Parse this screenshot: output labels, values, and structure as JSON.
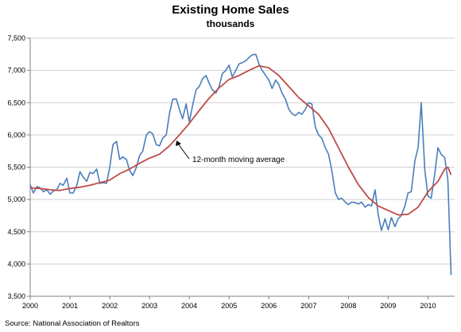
{
  "chart_data": {
    "type": "line",
    "title": "Existing Home Sales",
    "subtitle": "thousands",
    "xlabel": "",
    "ylabel": "",
    "xlim": [
      2000,
      2010.67
    ],
    "ylim": [
      3500,
      7500
    ],
    "x_ticks": [
      "2000",
      "2001",
      "2002",
      "2003",
      "2004",
      "2005",
      "2006",
      "2007",
      "2008",
      "2009",
      "2010"
    ],
    "y_ticks": [
      "3,500",
      "4,000",
      "4,500",
      "5,000",
      "5,500",
      "6,000",
      "6,500",
      "7,000",
      "7,500"
    ],
    "grid": true,
    "annotation": "12-month moving average",
    "source": "Source: National Association of Realtors",
    "colors": {
      "monthly": "#4a7ebb",
      "moving_average": "#be4b48",
      "grid": "#d0d0d0",
      "axis": "#808080"
    },
    "series": [
      {
        "name": "",
        "color": "#4a7ebb",
        "points": [
          [
            2000.0,
            5230
          ],
          [
            2000.08,
            5100
          ],
          [
            2000.17,
            5200
          ],
          [
            2000.25,
            5180
          ],
          [
            2000.33,
            5120
          ],
          [
            2000.42,
            5150
          ],
          [
            2000.5,
            5080
          ],
          [
            2000.58,
            5130
          ],
          [
            2000.67,
            5150
          ],
          [
            2000.75,
            5250
          ],
          [
            2000.83,
            5220
          ],
          [
            2000.92,
            5330
          ],
          [
            2001.0,
            5100
          ],
          [
            2001.08,
            5100
          ],
          [
            2001.17,
            5220
          ],
          [
            2001.25,
            5430
          ],
          [
            2001.33,
            5350
          ],
          [
            2001.42,
            5280
          ],
          [
            2001.5,
            5420
          ],
          [
            2001.58,
            5400
          ],
          [
            2001.67,
            5470
          ],
          [
            2001.75,
            5250
          ],
          [
            2001.83,
            5260
          ],
          [
            2001.92,
            5250
          ],
          [
            2002.0,
            5500
          ],
          [
            2002.08,
            5850
          ],
          [
            2002.17,
            5900
          ],
          [
            2002.25,
            5620
          ],
          [
            2002.33,
            5660
          ],
          [
            2002.42,
            5620
          ],
          [
            2002.5,
            5450
          ],
          [
            2002.58,
            5370
          ],
          [
            2002.67,
            5500
          ],
          [
            2002.75,
            5680
          ],
          [
            2002.83,
            5750
          ],
          [
            2002.92,
            6000
          ],
          [
            2003.0,
            6050
          ],
          [
            2003.08,
            6020
          ],
          [
            2003.17,
            5850
          ],
          [
            2003.25,
            5830
          ],
          [
            2003.33,
            5950
          ],
          [
            2003.42,
            6000
          ],
          [
            2003.5,
            6330
          ],
          [
            2003.58,
            6550
          ],
          [
            2003.67,
            6560
          ],
          [
            2003.75,
            6400
          ],
          [
            2003.83,
            6250
          ],
          [
            2003.92,
            6480
          ],
          [
            2004.0,
            6200
          ],
          [
            2004.08,
            6450
          ],
          [
            2004.17,
            6700
          ],
          [
            2004.25,
            6750
          ],
          [
            2004.33,
            6870
          ],
          [
            2004.42,
            6920
          ],
          [
            2004.5,
            6800
          ],
          [
            2004.58,
            6700
          ],
          [
            2004.67,
            6650
          ],
          [
            2004.75,
            6750
          ],
          [
            2004.83,
            6950
          ],
          [
            2004.92,
            7000
          ],
          [
            2005.0,
            7080
          ],
          [
            2005.08,
            6900
          ],
          [
            2005.17,
            7000
          ],
          [
            2005.25,
            7100
          ],
          [
            2005.33,
            7120
          ],
          [
            2005.42,
            7150
          ],
          [
            2005.5,
            7200
          ],
          [
            2005.58,
            7240
          ],
          [
            2005.67,
            7250
          ],
          [
            2005.75,
            7100
          ],
          [
            2005.83,
            7000
          ],
          [
            2005.92,
            6920
          ],
          [
            2006.0,
            6850
          ],
          [
            2006.08,
            6720
          ],
          [
            2006.17,
            6850
          ],
          [
            2006.25,
            6780
          ],
          [
            2006.33,
            6650
          ],
          [
            2006.42,
            6550
          ],
          [
            2006.5,
            6400
          ],
          [
            2006.58,
            6330
          ],
          [
            2006.67,
            6300
          ],
          [
            2006.75,
            6350
          ],
          [
            2006.83,
            6320
          ],
          [
            2006.92,
            6400
          ],
          [
            2007.0,
            6500
          ],
          [
            2007.08,
            6480
          ],
          [
            2007.17,
            6120
          ],
          [
            2007.25,
            6000
          ],
          [
            2007.33,
            5950
          ],
          [
            2007.42,
            5800
          ],
          [
            2007.5,
            5700
          ],
          [
            2007.58,
            5450
          ],
          [
            2007.67,
            5100
          ],
          [
            2007.75,
            5000
          ],
          [
            2007.83,
            5020
          ],
          [
            2007.92,
            4960
          ],
          [
            2008.0,
            4920
          ],
          [
            2008.08,
            4960
          ],
          [
            2008.17,
            4950
          ],
          [
            2008.25,
            4930
          ],
          [
            2008.33,
            4960
          ],
          [
            2008.42,
            4880
          ],
          [
            2008.5,
            4920
          ],
          [
            2008.58,
            4900
          ],
          [
            2008.67,
            5150
          ],
          [
            2008.75,
            4760
          ],
          [
            2008.83,
            4520
          ],
          [
            2008.92,
            4700
          ],
          [
            2009.0,
            4530
          ],
          [
            2009.08,
            4720
          ],
          [
            2009.17,
            4580
          ],
          [
            2009.25,
            4700
          ],
          [
            2009.33,
            4750
          ],
          [
            2009.42,
            4900
          ],
          [
            2009.5,
            5100
          ],
          [
            2009.58,
            5120
          ],
          [
            2009.67,
            5600
          ],
          [
            2009.75,
            5800
          ],
          [
            2009.83,
            6500
          ],
          [
            2009.92,
            5450
          ],
          [
            2010.0,
            5050
          ],
          [
            2010.08,
            5020
          ],
          [
            2010.17,
            5400
          ],
          [
            2010.25,
            5800
          ],
          [
            2010.33,
            5700
          ],
          [
            2010.42,
            5650
          ],
          [
            2010.5,
            5300
          ],
          [
            2010.58,
            3830
          ]
        ]
      },
      {
        "name": "12-month moving average",
        "color": "#be4b48",
        "points": [
          [
            2000.0,
            5180
          ],
          [
            2000.25,
            5170
          ],
          [
            2000.5,
            5150
          ],
          [
            2000.75,
            5140
          ],
          [
            2001.0,
            5170
          ],
          [
            2001.25,
            5190
          ],
          [
            2001.5,
            5220
          ],
          [
            2001.75,
            5260
          ],
          [
            2002.0,
            5300
          ],
          [
            2002.25,
            5400
          ],
          [
            2002.5,
            5470
          ],
          [
            2002.75,
            5560
          ],
          [
            2003.0,
            5640
          ],
          [
            2003.25,
            5700
          ],
          [
            2003.5,
            5830
          ],
          [
            2003.75,
            6000
          ],
          [
            2004.0,
            6180
          ],
          [
            2004.25,
            6380
          ],
          [
            2004.5,
            6570
          ],
          [
            2004.75,
            6730
          ],
          [
            2005.0,
            6860
          ],
          [
            2005.25,
            6920
          ],
          [
            2005.5,
            7000
          ],
          [
            2005.75,
            7070
          ],
          [
            2006.0,
            7040
          ],
          [
            2006.25,
            6920
          ],
          [
            2006.5,
            6750
          ],
          [
            2006.75,
            6580
          ],
          [
            2007.0,
            6450
          ],
          [
            2007.25,
            6320
          ],
          [
            2007.5,
            6100
          ],
          [
            2007.75,
            5800
          ],
          [
            2008.0,
            5500
          ],
          [
            2008.25,
            5230
          ],
          [
            2008.5,
            5030
          ],
          [
            2008.75,
            4900
          ],
          [
            2009.0,
            4830
          ],
          [
            2009.25,
            4760
          ],
          [
            2009.5,
            4770
          ],
          [
            2009.75,
            4880
          ],
          [
            2010.0,
            5120
          ],
          [
            2010.25,
            5280
          ],
          [
            2010.42,
            5470
          ],
          [
            2010.5,
            5500
          ],
          [
            2010.58,
            5380
          ]
        ]
      }
    ]
  }
}
